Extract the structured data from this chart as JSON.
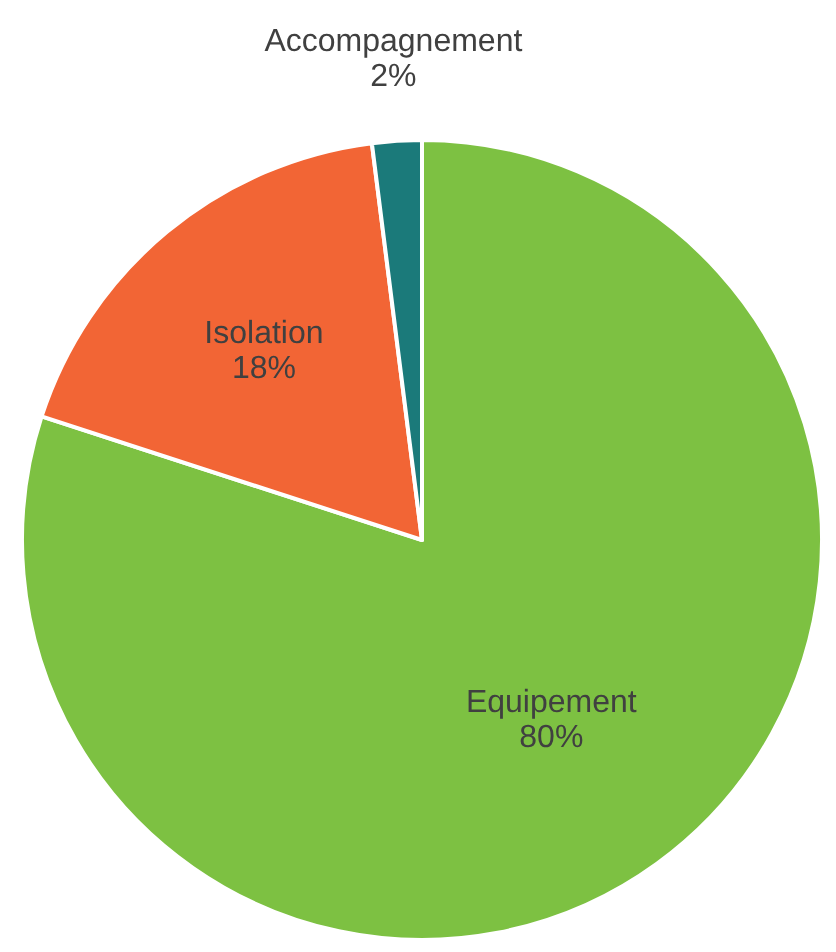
{
  "chart_data": {
    "type": "pie",
    "categories": [
      "Equipement",
      "Isolation",
      "Accompagnement"
    ],
    "values": [
      80,
      18,
      2
    ],
    "colors": [
      "#7dc142",
      "#f26535",
      "#1b7a7a"
    ],
    "value_labels": [
      "80%",
      "18%",
      "2%"
    ]
  }
}
